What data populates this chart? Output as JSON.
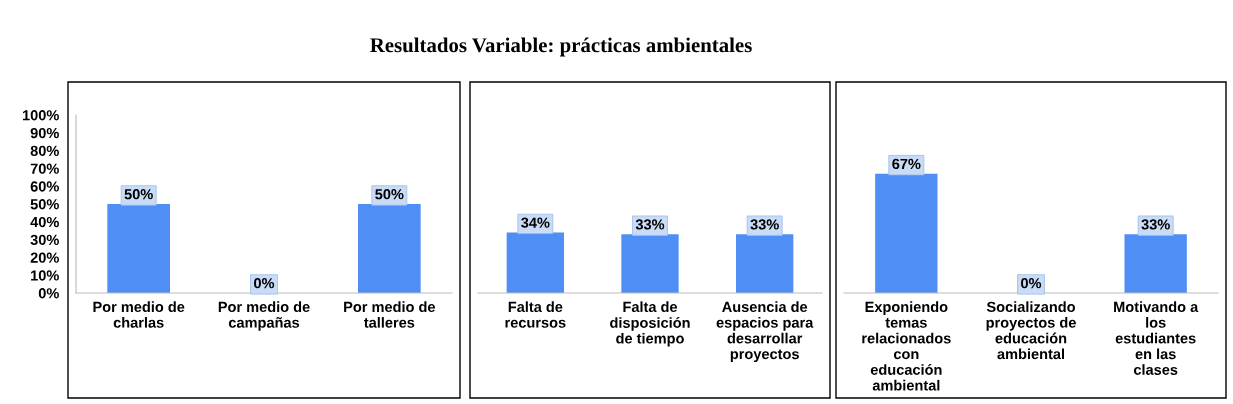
{
  "chart_data": [
    {
      "type": "bar",
      "title": "Resultados Variable: prácticas ambientales",
      "categories": [
        "Por medio de\ncharlas",
        "Por medio de\ncampañas",
        "Por medio de\ntalleres"
      ],
      "values": [
        50,
        0,
        50
      ],
      "value_labels": [
        "50%",
        "0%",
        "50%"
      ],
      "color": "#4f8ef5",
      "ylim": [
        0,
        100
      ],
      "yticks": [
        {
          "value": 0,
          "label": "0%"
        },
        {
          "value": 10,
          "label": "10%"
        },
        {
          "value": 20,
          "label": "20%"
        },
        {
          "value": 30,
          "label": "30%"
        },
        {
          "value": 40,
          "label": "40%"
        },
        {
          "value": 50,
          "label": "50%"
        },
        {
          "value": 60,
          "label": "60%"
        },
        {
          "value": 70,
          "label": "70%"
        },
        {
          "value": 80,
          "label": "80%"
        },
        {
          "value": 90,
          "label": "90%"
        },
        {
          "value": 100,
          "label": "100%"
        }
      ],
      "grid": false
    },
    {
      "type": "bar",
      "categories": [
        "Falta de\nrecursos",
        "Falta de\ndisposición\nde tiempo",
        "Ausencia de\nespacios para\ndesarrollar\nproyectos"
      ],
      "values": [
        34,
        33,
        33
      ],
      "value_labels": [
        "34%",
        "33%",
        "33%"
      ],
      "color": "#4f8ef5",
      "ylim": [
        0,
        100
      ],
      "tick_labels": "x",
      "grid": false
    },
    {
      "type": "bar",
      "categories": [
        "Exponiendo\ntemas\nrelacionados\ncon\neducación\nambiental",
        "Socializando\nproyectos de\neducación\nambiental",
        "Motivando a\nlos\nestudiantes\nen las\nclases"
      ],
      "values": [
        67,
        0,
        33
      ],
      "value_labels": [
        "67%",
        "0%",
        "33%"
      ],
      "color": "#4f8ef5",
      "ylim": [
        0,
        100
      ],
      "tick_labels": "x",
      "grid": false
    }
  ]
}
